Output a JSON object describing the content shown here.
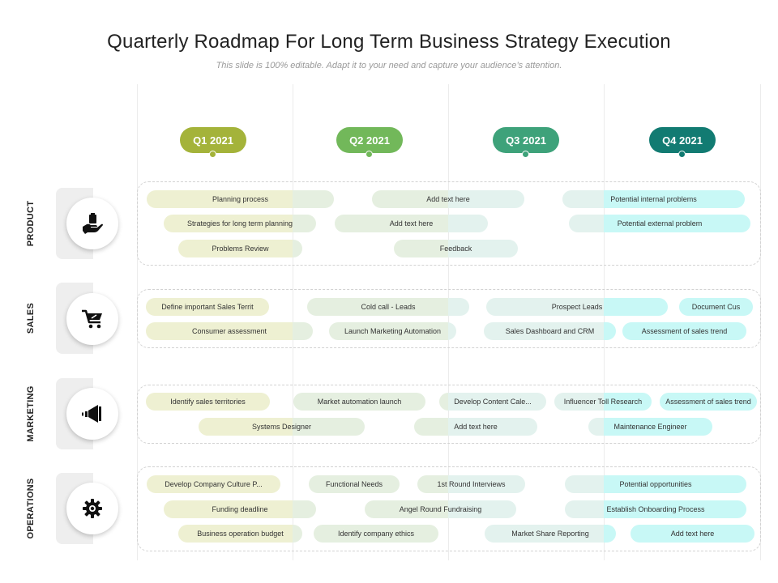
{
  "title": "Quarterly Roadmap For Long Term Business Strategy Execution",
  "subtitle": "This slide is 100% editable. Adapt it to your need and capture your audience’s attention.",
  "quarters": [
    {
      "label": "Q1 2021",
      "color": "#a4b33a"
    },
    {
      "label": "Q2 2021",
      "color": "#72b85a"
    },
    {
      "label": "Q3 2021",
      "color": "#3ea27a"
    },
    {
      "label": "Q4 2021",
      "color": "#127b72"
    }
  ],
  "rows": [
    {
      "label": "PRODUCT",
      "icon": "hand-holding-box-icon",
      "tasks": [
        "Planning process",
        "Strategies for long term planning",
        "Problems Review",
        "Add text here",
        "Add text here",
        "Feedback",
        "Potential internal problems",
        "Potential external problem"
      ]
    },
    {
      "label": "SALES",
      "icon": "shopping-cart-icon",
      "tasks": [
        "Define important Sales Territ",
        "Consumer assessment",
        "Cold call - Leads",
        "Launch Marketing Automation",
        "Prospect Leads",
        "Sales Dashboard and CRM",
        "Document Cus",
        "Assessment of sales trend"
      ]
    },
    {
      "label": "MARKETING",
      "icon": "megaphone-icon",
      "tasks": [
        "Identify sales territories",
        "Systems Designer",
        "Market automation launch",
        "Add text here",
        "Develop Content Cale...",
        "Influencer Toll Research",
        "Assessment of sales trend",
        "Maintenance Engineer"
      ]
    },
    {
      "label": "OPERATIONS",
      "icon": "gear-icon",
      "tasks": [
        "Develop Company Culture P...",
        "Funding deadline",
        "Business operation budget",
        "Functional Needs",
        "1st Round Interviews",
        "Angel Round Fundraising",
        "Identify company ethics",
        "Market Share Reporting",
        "Potential opportunities",
        "Establish Onboarding Process",
        "Add text here"
      ]
    }
  ],
  "colors": {
    "q1_bar": "#eef0d2",
    "q2_bar": "#e5efe0",
    "q3_bar": "#e3f2ee",
    "q4_bar": "#c8f8f6"
  }
}
